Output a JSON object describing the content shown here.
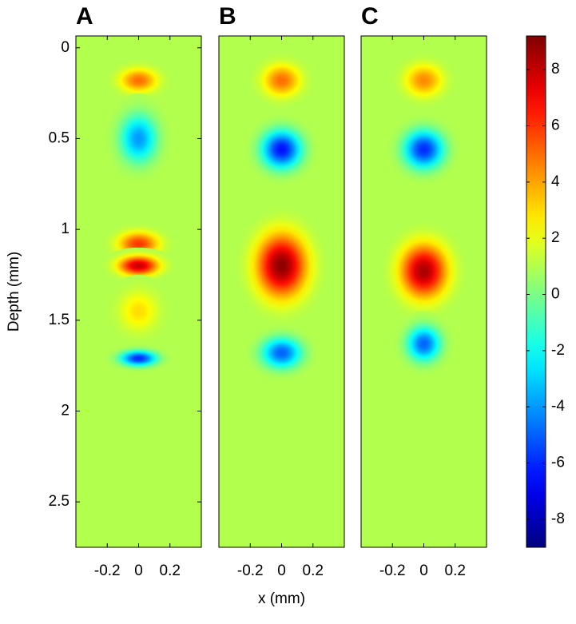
{
  "chart_data": [
    {
      "type": "heatmap",
      "panel_label": "A",
      "ylabel": "Depth (mm)",
      "xlim": [
        -0.4,
        0.4
      ],
      "ylim": [
        2.75,
        -0.065
      ],
      "xticks": [
        -0.2,
        0,
        0.2
      ],
      "yticks": [
        0,
        0.5,
        1,
        1.5,
        2,
        2.5
      ],
      "background": 1,
      "blobs": [
        {
          "x": 0,
          "depth": 0.18,
          "value": 5,
          "width": 0.22,
          "height": 0.12
        },
        {
          "x": 0,
          "depth": 0.5,
          "value": -4,
          "width": 0.22,
          "height": 0.25
        },
        {
          "x": 0,
          "depth": 1.08,
          "value": 6,
          "width": 0.24,
          "height": 0.12
        },
        {
          "x": 0,
          "depth": 1.2,
          "value": 8,
          "width": 0.24,
          "height": 0.1
        },
        {
          "x": 0,
          "depth": 1.45,
          "value": 3,
          "width": 0.22,
          "height": 0.2
        },
        {
          "x": 0,
          "depth": 1.71,
          "value": -6,
          "width": 0.22,
          "height": 0.08
        }
      ]
    },
    {
      "type": "heatmap",
      "panel_label": "B",
      "xlabel": "x (mm)",
      "xlim": [
        -0.4,
        0.4
      ],
      "ylim": [
        2.75,
        -0.065
      ],
      "xticks": [
        -0.2,
        0,
        0.2
      ],
      "background": 1,
      "blobs": [
        {
          "x": 0,
          "depth": 0.18,
          "value": 5,
          "width": 0.22,
          "height": 0.16
        },
        {
          "x": 0,
          "depth": 0.56,
          "value": -6.5,
          "width": 0.24,
          "height": 0.2
        },
        {
          "x": 0,
          "depth": 1.2,
          "value": 9,
          "width": 0.3,
          "height": 0.33
        },
        {
          "x": 0,
          "depth": 1.68,
          "value": -5,
          "width": 0.24,
          "height": 0.16
        }
      ]
    },
    {
      "type": "heatmap",
      "panel_label": "C",
      "xlim": [
        -0.4,
        0.4
      ],
      "ylim": [
        2.75,
        -0.065
      ],
      "xticks": [
        -0.2,
        0,
        0.2
      ],
      "background": 1,
      "blobs": [
        {
          "x": 0,
          "depth": 0.18,
          "value": 4.5,
          "width": 0.22,
          "height": 0.16
        },
        {
          "x": 0,
          "depth": 0.56,
          "value": -6,
          "width": 0.24,
          "height": 0.2
        },
        {
          "x": 0,
          "depth": 1.23,
          "value": 8.5,
          "width": 0.28,
          "height": 0.28
        },
        {
          "x": 0,
          "depth": 1.63,
          "value": -5,
          "width": 0.2,
          "height": 0.18
        }
      ]
    }
  ],
  "colorbar": {
    "clim": [
      -9,
      9.2
    ],
    "ticks": [
      -8,
      -6,
      -4,
      -2,
      0,
      2,
      4,
      6,
      8
    ]
  }
}
